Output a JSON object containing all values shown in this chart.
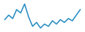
{
  "values": [
    2.0,
    2.8,
    2.2,
    3.8,
    3.2,
    4.8,
    2.5,
    0.8,
    1.5,
    0.5,
    1.2,
    0.8,
    1.8,
    1.2,
    2.0,
    1.5,
    2.2,
    1.8,
    2.8,
    3.8
  ],
  "line_color": "#2b8fc4",
  "line_width": 1.2,
  "background_color": "#ffffff"
}
